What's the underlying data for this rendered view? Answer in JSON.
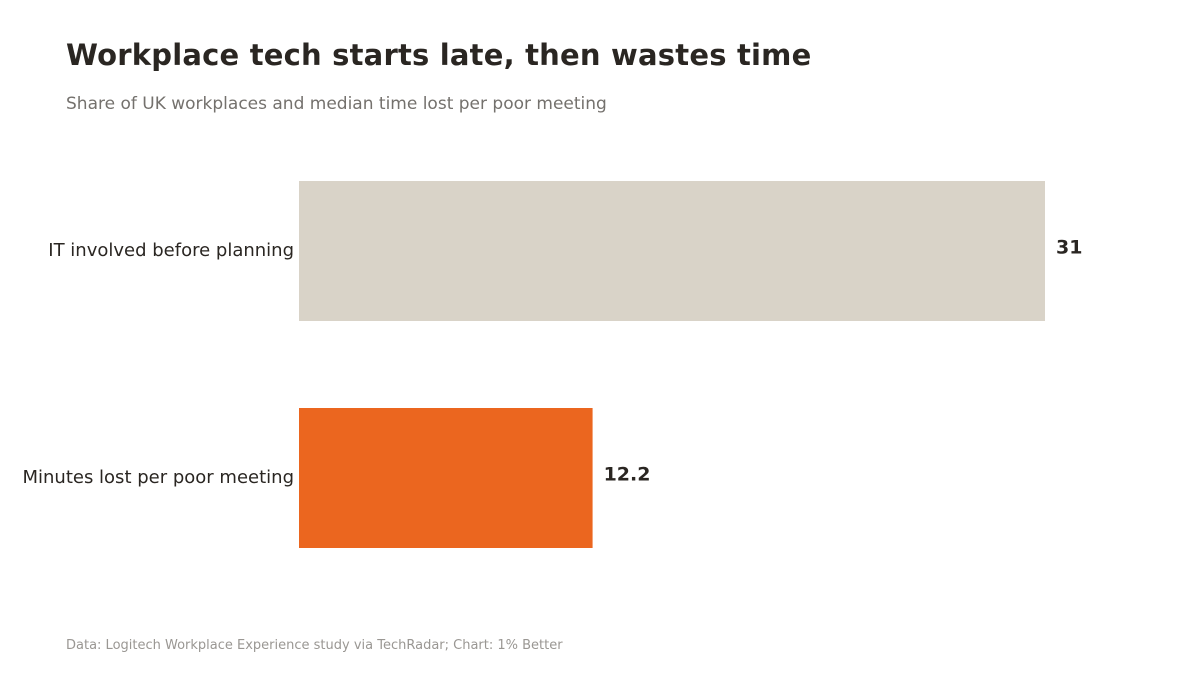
{
  "header": {
    "title": "Workplace tech starts late, then wastes time",
    "subtitle": "Share of UK workplaces and median time lost per poor meeting"
  },
  "footer": {
    "source": "Data: Logitech Workplace Experience study via TechRadar; Chart: 1% Better"
  },
  "chart_data": {
    "type": "bar",
    "orientation": "horizontal",
    "title": "Workplace tech starts late, then wastes time",
    "subtitle": "Share of UK workplaces and median time lost per poor meeting",
    "categories": [
      "IT involved before planning",
      "Minutes lost per poor meeting"
    ],
    "values": [
      31,
      12.2
    ],
    "value_labels": [
      "31",
      "12.2"
    ],
    "colors": [
      "#d9d3c8",
      "#eb661f"
    ],
    "xlim": [
      0,
      31
    ],
    "grid": false,
    "legend": "none"
  }
}
